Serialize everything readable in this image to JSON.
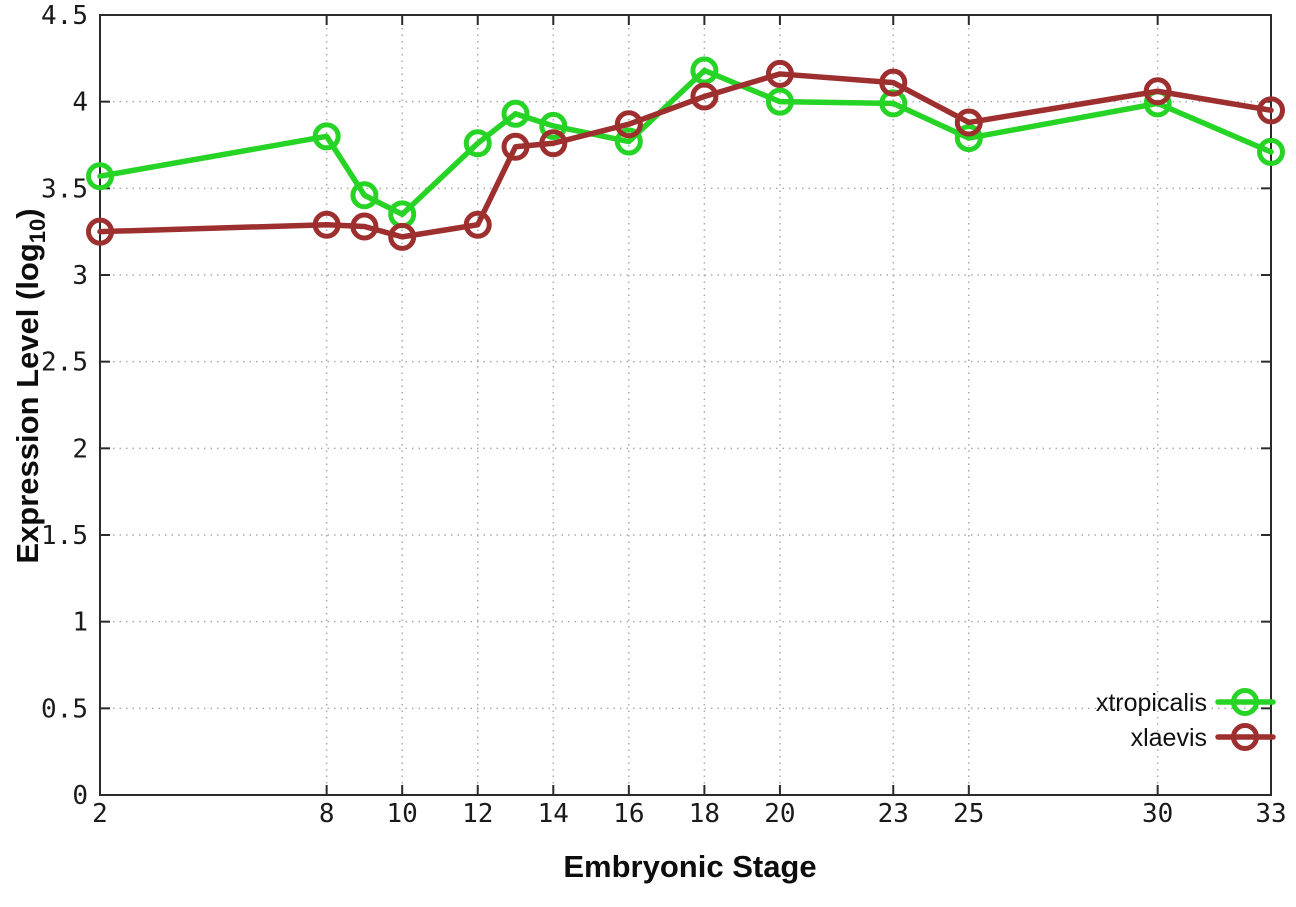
{
  "chart_data": {
    "type": "line",
    "title": "",
    "xlabel": "Embryonic Stage",
    "ylabel": "Expression Level (log10)",
    "ylabel_parts": {
      "main": "Expression Level (log",
      "sub": "10",
      "end": ")"
    },
    "x": [
      2,
      8,
      9,
      10,
      12,
      13,
      14,
      16,
      18,
      20,
      23,
      25,
      30,
      33
    ],
    "series": [
      {
        "name": "xtropicalis",
        "color": "#25d425",
        "values": [
          3.57,
          3.8,
          3.46,
          3.35,
          3.76,
          3.93,
          3.86,
          3.77,
          4.18,
          4.0,
          3.99,
          3.79,
          3.99,
          3.71
        ]
      },
      {
        "name": "xlaevis",
        "color": "#9e2f2f",
        "values": [
          3.25,
          3.29,
          3.28,
          3.22,
          3.29,
          3.74,
          3.76,
          3.87,
          4.03,
          4.16,
          4.11,
          3.88,
          4.06,
          3.95
        ]
      }
    ],
    "x_ticks": [
      2,
      8,
      10,
      12,
      14,
      16,
      18,
      20,
      23,
      25,
      30,
      33
    ],
    "y_ticks": [
      0,
      0.5,
      1,
      1.5,
      2,
      2.5,
      3,
      3.5,
      4,
      4.5
    ],
    "xlim": [
      2,
      33
    ],
    "ylim": [
      0,
      4.5
    ],
    "grid": true,
    "grid_style": "dotted",
    "legend_position": "inside-bottom-right",
    "marker": "open-circle",
    "frame_color": "#2b2b2b",
    "grid_color": "#ababab",
    "background": "#ffffff"
  }
}
